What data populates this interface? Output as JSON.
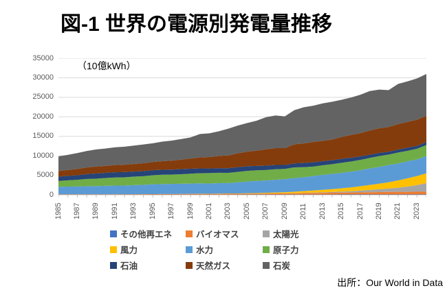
{
  "title": "図-1 世界の電源別発電量推移",
  "unit_label": "（10億kWh）",
  "source": "出所：Our World in Data",
  "chart_data": {
    "type": "area",
    "stacked": true,
    "title": "図-1 世界の電源別発電量推移",
    "ylabel": "（10億kWh）",
    "ylim": [
      0,
      35000
    ],
    "y_ticks": [
      0,
      5000,
      10000,
      15000,
      20000,
      25000,
      30000,
      35000
    ],
    "grid": "horizontal",
    "legend_position": "bottom",
    "x": [
      1985,
      1986,
      1987,
      1988,
      1989,
      1990,
      1991,
      1992,
      1993,
      1994,
      1995,
      1996,
      1997,
      1998,
      1999,
      2000,
      2001,
      2002,
      2003,
      2004,
      2005,
      2006,
      2007,
      2008,
      2009,
      2010,
      2011,
      2012,
      2013,
      2014,
      2015,
      2016,
      2017,
      2018,
      2019,
      2020,
      2021,
      2022,
      2023,
      2024
    ],
    "x_tick_labels": [
      "1985",
      "1987",
      "1989",
      "1991",
      "1993",
      "1995",
      "1997",
      "1999",
      "2001",
      "2003",
      "2005",
      "2007",
      "2009",
      "2011",
      "2013",
      "2015",
      "2017",
      "2019",
      "2021",
      "2023"
    ],
    "series": [
      {
        "name": "その他再エネ",
        "color": "#4472C4",
        "values": [
          30,
          31,
          32,
          33,
          35,
          36,
          37,
          38,
          39,
          40,
          41,
          43,
          45,
          47,
          50,
          52,
          53,
          54,
          55,
          56,
          58,
          59,
          60,
          62,
          64,
          65,
          67,
          70,
          72,
          75,
          80,
          82,
          84,
          86,
          88,
          90,
          92,
          94,
          96,
          100
        ]
      },
      {
        "name": "バイオマス",
        "color": "#ED7D31",
        "values": [
          80,
          85,
          90,
          92,
          96,
          100,
          105,
          110,
          115,
          122,
          130,
          138,
          145,
          152,
          160,
          170,
          180,
          192,
          205,
          218,
          230,
          250,
          270,
          290,
          300,
          340,
          370,
          400,
          430,
          455,
          480,
          510,
          540,
          580,
          620,
          650,
          670,
          680,
          700,
          710
        ]
      },
      {
        "name": "太陽光",
        "color": "#A5A5A5",
        "values": [
          0,
          0,
          0,
          0,
          0,
          0,
          0,
          0,
          0,
          0,
          1,
          1,
          1,
          1,
          1,
          1,
          1,
          2,
          2,
          3,
          4,
          5,
          7,
          12,
          21,
          34,
          63,
          97,
          132,
          197,
          260,
          330,
          445,
          585,
          720,
          860,
          1070,
          1330,
          1680,
          2180
        ]
      },
      {
        "name": "風力",
        "color": "#FFC000",
        "values": [
          0,
          1,
          1,
          2,
          3,
          4,
          4,
          5,
          6,
          7,
          8,
          9,
          12,
          16,
          21,
          31,
          38,
          52,
          63,
          85,
          104,
          133,
          171,
          221,
          276,
          346,
          437,
          530,
          648,
          717,
          840,
          960,
          1140,
          1270,
          1420,
          1600,
          1870,
          2120,
          2330,
          2520
        ]
      },
      {
        "name": "水力",
        "color": "#5B9BD5",
        "values": [
          1960,
          2000,
          2020,
          2090,
          2080,
          2160,
          2220,
          2220,
          2330,
          2370,
          2520,
          2560,
          2600,
          2620,
          2650,
          2700,
          2640,
          2700,
          2690,
          2830,
          3020,
          3120,
          3160,
          3290,
          3330,
          3530,
          3570,
          3720,
          3850,
          3920,
          3970,
          4050,
          4110,
          4240,
          4290,
          4440,
          4330,
          4370,
          4250,
          4420
        ]
      },
      {
        "name": "原子力",
        "color": "#70AD47",
        "values": [
          1480,
          1590,
          1700,
          1840,
          1910,
          2000,
          2080,
          2110,
          2170,
          2230,
          2320,
          2400,
          2390,
          2430,
          2530,
          2580,
          2640,
          2660,
          2610,
          2680,
          2720,
          2720,
          2690,
          2680,
          2640,
          2720,
          2580,
          2410,
          2430,
          2480,
          2570,
          2600,
          2620,
          2690,
          2790,
          2670,
          2800,
          2680,
          2740,
          2820
        ]
      },
      {
        "name": "石油",
        "color": "#264478",
        "values": [
          1090,
          1170,
          1180,
          1250,
          1320,
          1320,
          1330,
          1350,
          1300,
          1310,
          1300,
          1270,
          1280,
          1320,
          1280,
          1240,
          1200,
          1170,
          1180,
          1200,
          1190,
          1120,
          1110,
          1100,
          1030,
          1020,
          1060,
          1100,
          1060,
          1020,
          1030,
          960,
          900,
          840,
          830,
          730,
          760,
          810,
          760,
          740
        ]
      },
      {
        "name": "天然ガス",
        "color": "#843C0C",
        "values": [
          1440,
          1500,
          1600,
          1700,
          1800,
          1790,
          1850,
          1890,
          1950,
          2020,
          2090,
          2190,
          2280,
          2430,
          2610,
          2810,
          2920,
          3120,
          3280,
          3560,
          3740,
          3910,
          4210,
          4300,
          4290,
          4900,
          5030,
          5220,
          5200,
          5290,
          5600,
          5860,
          5960,
          6190,
          6300,
          6340,
          6550,
          6600,
          6700,
          6790
        ]
      },
      {
        "name": "石炭",
        "color": "#636363",
        "values": [
          3780,
          3870,
          4080,
          4230,
          4390,
          4460,
          4550,
          4600,
          4700,
          4800,
          4800,
          5010,
          5150,
          5270,
          5400,
          6000,
          6100,
          6350,
          6860,
          7120,
          7340,
          7670,
          8220,
          8390,
          8170,
          8740,
          9270,
          9300,
          9610,
          9710,
          9540,
          9590,
          9860,
          10120,
          9920,
          9470,
          10290,
          10400,
          10570,
          10700
        ]
      }
    ],
    "colors": {
      "gridline": "#D9D9D9",
      "axis": "#BFBFBF",
      "tick_label": "#595959"
    }
  }
}
